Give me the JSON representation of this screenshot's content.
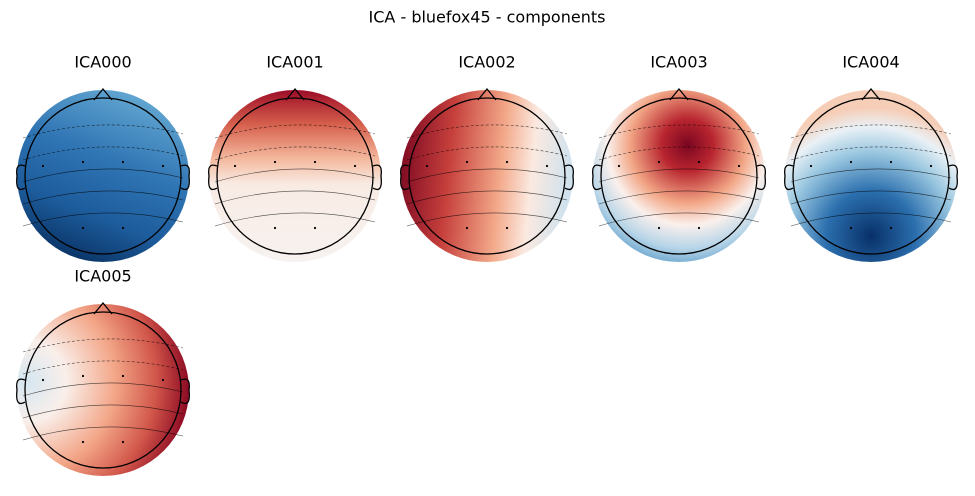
{
  "title": "ICA - bluefox45 - components",
  "components": [
    "ICA000",
    "ICA001",
    "ICA002",
    "ICA003",
    "ICA004",
    "ICA005"
  ]
}
